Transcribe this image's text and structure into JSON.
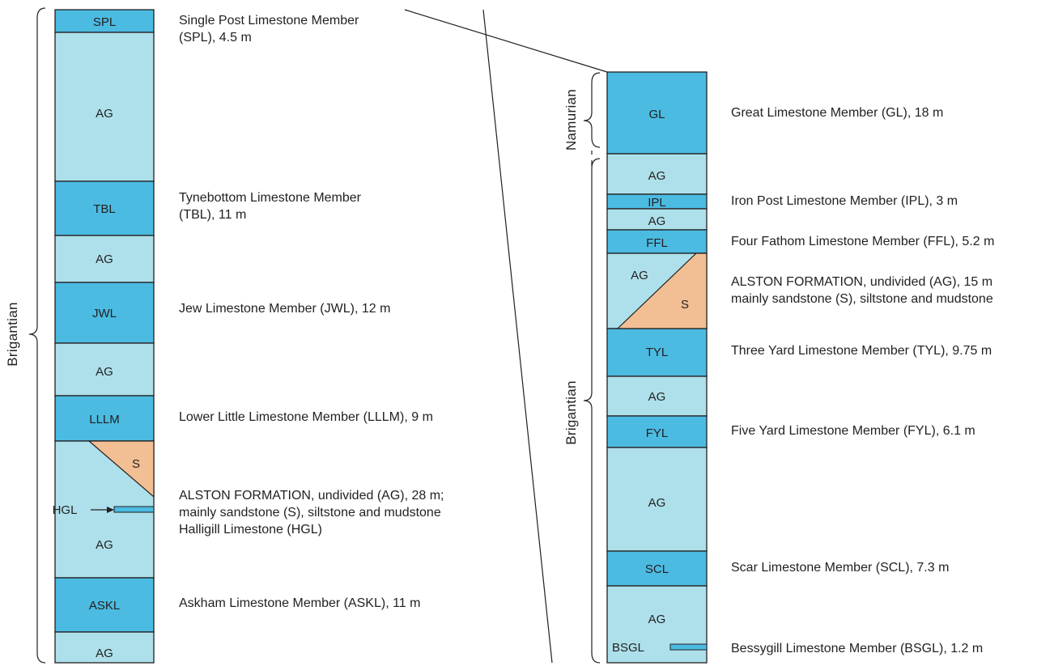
{
  "colors": {
    "limestone": "#4bbbe2",
    "argillaceous": "#ade0ea",
    "sandstone": "#f2bf94",
    "outline": "#231f20"
  },
  "left_column": {
    "stage_label": "Brigantian",
    "units": [
      {
        "label": "SPL",
        "kind": "limestone"
      },
      {
        "label": "AG",
        "kind": "argillaceous"
      },
      {
        "label": "TBL",
        "kind": "limestone"
      },
      {
        "label": "AG",
        "kind": "argillaceous"
      },
      {
        "label": "JWL",
        "kind": "limestone"
      },
      {
        "label": "AG",
        "kind": "argillaceous"
      },
      {
        "label": "LLLM",
        "kind": "limestone"
      },
      {
        "label": "AG",
        "kind": "argillaceous"
      },
      {
        "label": "ASKL",
        "kind": "limestone"
      },
      {
        "label": "AG",
        "kind": "argillaceous"
      }
    ],
    "sandstone_label": "S",
    "hgl_label": "HGL",
    "descriptions": [
      {
        "lines": [
          "Single Post Limestone Member",
          "(SPL), 4.5 m"
        ]
      },
      {
        "lines": [
          "Tynebottom Limestone Member",
          "(TBL), 11 m"
        ]
      },
      {
        "lines": [
          "Jew Limestone Member (JWL), 12 m"
        ]
      },
      {
        "lines": [
          "Lower Little Limestone Member (LLLM), 9 m"
        ]
      },
      {
        "lines": [
          "ALSTON FORMATION, undivided (AG), 28 m;",
          "mainly sandstone (S), siltstone and mudstone",
          "Halligill Limestone (HGL)"
        ]
      },
      {
        "lines": [
          "Askham Limestone Member (ASKL), 11 m"
        ]
      }
    ]
  },
  "right_column": {
    "upper_stage_label": "Namurian",
    "lower_stage_label": "Brigantian",
    "units": [
      {
        "label": "GL",
        "kind": "limestone"
      },
      {
        "label": "AG",
        "kind": "argillaceous"
      },
      {
        "label": "IPL",
        "kind": "limestone"
      },
      {
        "label": "AG",
        "kind": "argillaceous"
      },
      {
        "label": "FFL",
        "kind": "limestone"
      },
      {
        "label": "AG",
        "kind": "argillaceous"
      },
      {
        "label": "TYL",
        "kind": "limestone"
      },
      {
        "label": "AG",
        "kind": "argillaceous"
      },
      {
        "label": "FYL",
        "kind": "limestone"
      },
      {
        "label": "AG",
        "kind": "argillaceous"
      },
      {
        "label": "SCL",
        "kind": "limestone"
      },
      {
        "label": "AG",
        "kind": "argillaceous"
      }
    ],
    "sandstone_label": "S",
    "bsgl_label": "BSGL",
    "descriptions": [
      {
        "lines": [
          "Great Limestone Member (GL), 18 m"
        ]
      },
      {
        "lines": [
          "Iron Post Limestone Member (IPL), 3 m"
        ]
      },
      {
        "lines": [
          "Four Fathom Limestone Member (FFL), 5.2 m"
        ]
      },
      {
        "lines": [
          "ALSTON FORMATION, undivided (AG), 15 m",
          "mainly sandstone (S), siltstone and mudstone"
        ]
      },
      {
        "lines": [
          "Three Yard Limestone Member (TYL), 9.75 m"
        ]
      },
      {
        "lines": [
          "Five Yard Limestone Member (FYL), 6.1 m"
        ]
      },
      {
        "lines": [
          "Scar Limestone Member (SCL), 7.3 m"
        ]
      },
      {
        "lines": [
          "Bessygill Limestone Member (BSGL), 1.2 m"
        ]
      }
    ]
  }
}
